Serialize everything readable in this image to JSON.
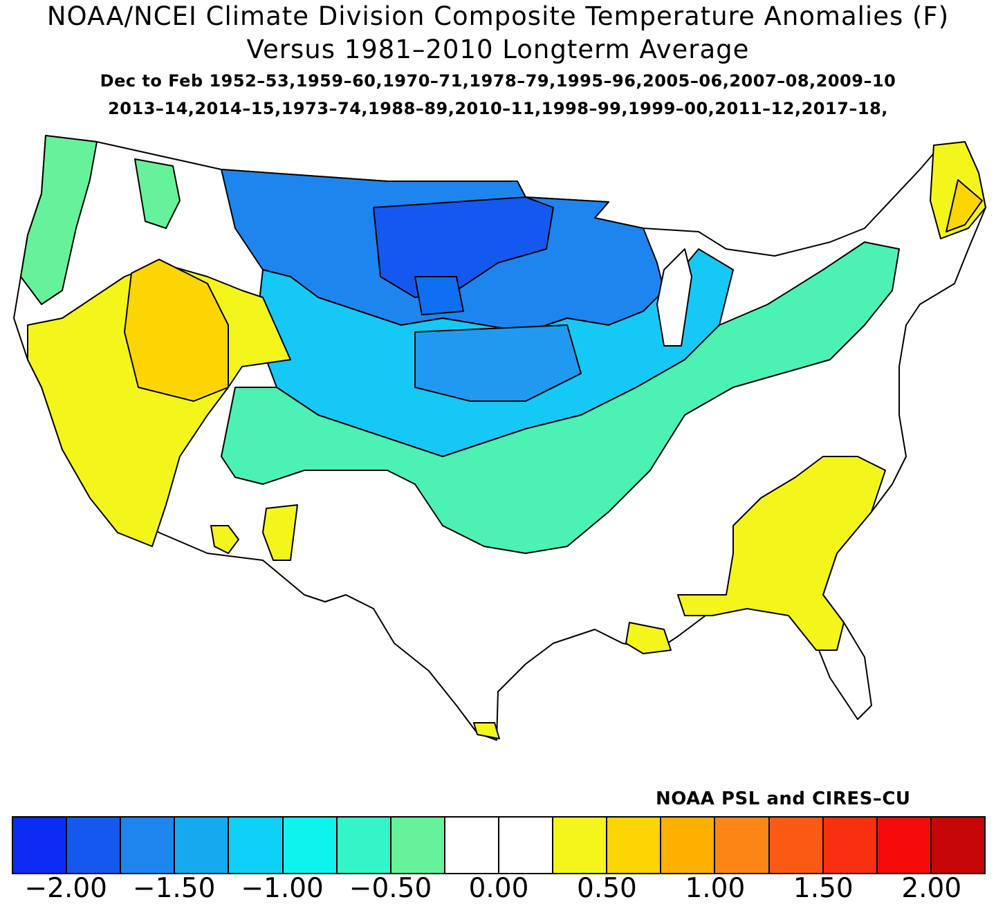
{
  "title_line1": "NOAA/NCEI Climate Division Composite Temperature Anomalies (F)",
  "title_line2": "Versus 1981–2010 Longterm Average",
  "season_line": "Dec to Feb  1952–53,1959–60,1970–71,1978–79,1995–96,2005–06,2007–08,2009–10",
  "years_line": "2013–14,2014–15,1973–74,1988–89,2010–11,1998–99,1999–00,2011–12,2017–18,",
  "credit": "NOAA PSL and CIRES–CU",
  "colorbar": {
    "colors": [
      "#0a2cf5",
      "#1558f0",
      "#1f85ee",
      "#16a9f0",
      "#0fd0f7",
      "#0ff3ee",
      "#33f5c7",
      "#66f29a",
      "#ffffff",
      "#ffffff",
      "#f4f51a",
      "#fcd503",
      "#fdb000",
      "#fa8616",
      "#fa5a14",
      "#f7300f",
      "#f60a0a",
      "#c70606"
    ],
    "tick_labels": [
      "−2.00",
      "−1.50",
      "−1.00",
      "−0.50",
      "0.00",
      "0.50",
      "1.00",
      "1.50",
      "2.00"
    ]
  },
  "map_colors": {
    "strong_negative": "#1f6fee",
    "negative": "#1f9af0",
    "weak_negative": "#16c8f5",
    "slight_negative": "#2ff3ee",
    "green_negative": "#4cf1b4",
    "neutral": "#ffffff",
    "warm": "#f4f51a",
    "warmer": "#fcd503"
  }
}
